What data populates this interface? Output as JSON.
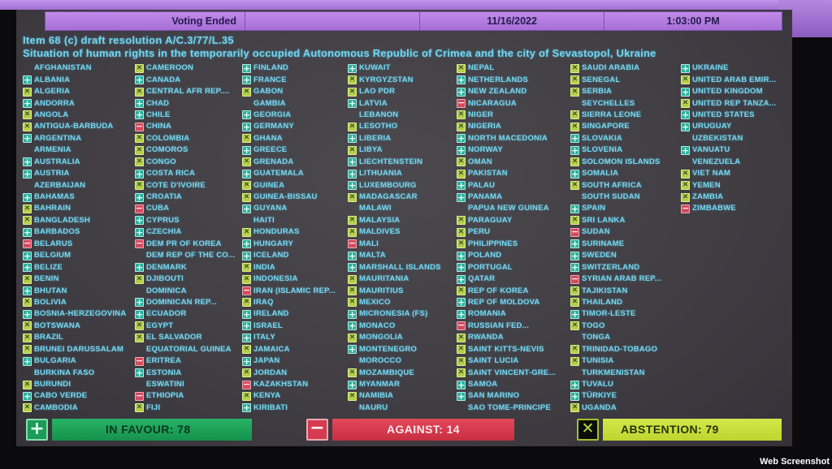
{
  "header": {
    "voting_status": "Voting Ended",
    "date": "11/16/2022",
    "time": "1:03:00 PM"
  },
  "title": {
    "line1": "Item 68 (c) draft resolution A/C.3/77/L.35",
    "line2": "Situation of human rights in the temporarily occupied Autonomous Republic of Crimea and the city of Sevastopol, Ukraine"
  },
  "vote_legend": {
    "Y": {
      "meaning": "in favour",
      "icon": "plus-icon"
    },
    "N": {
      "meaning": "against",
      "icon": "minus-icon"
    },
    "A": {
      "meaning": "abstention",
      "icon": "x-icon"
    },
    "": {
      "meaning": "not voting",
      "icon": "none"
    }
  },
  "votes": {
    "columns": [
      [
        {
          "name": "AFGHANISTAN",
          "vote": ""
        },
        {
          "name": "ALBANIA",
          "vote": "Y"
        },
        {
          "name": "ALGERIA",
          "vote": "A"
        },
        {
          "name": "ANDORRA",
          "vote": "Y"
        },
        {
          "name": "ANGOLA",
          "vote": "A"
        },
        {
          "name": "ANTIGUA-BARBUDA",
          "vote": "A"
        },
        {
          "name": "ARGENTINA",
          "vote": "Y"
        },
        {
          "name": "ARMENIA",
          "vote": ""
        },
        {
          "name": "AUSTRALIA",
          "vote": "Y"
        },
        {
          "name": "AUSTRIA",
          "vote": "Y"
        },
        {
          "name": "AZERBAIJAN",
          "vote": ""
        },
        {
          "name": "BAHAMAS",
          "vote": "Y"
        },
        {
          "name": "BAHRAIN",
          "vote": "A"
        },
        {
          "name": "BANGLADESH",
          "vote": "A"
        },
        {
          "name": "BARBADOS",
          "vote": "Y"
        },
        {
          "name": "BELARUS",
          "vote": "N"
        },
        {
          "name": "BELGIUM",
          "vote": "Y"
        },
        {
          "name": "BELIZE",
          "vote": "Y"
        },
        {
          "name": "BENIN",
          "vote": "A"
        },
        {
          "name": "BHUTAN",
          "vote": "Y"
        },
        {
          "name": "BOLIVIA",
          "vote": "A"
        },
        {
          "name": "BOSNIA-HERZEGOVINA",
          "vote": "Y"
        },
        {
          "name": "BOTSWANA",
          "vote": "A"
        },
        {
          "name": "BRAZIL",
          "vote": "A"
        },
        {
          "name": "BRUNEI DARUSSALAM",
          "vote": "A"
        },
        {
          "name": "BULGARIA",
          "vote": "Y"
        },
        {
          "name": "BURKINA FASO",
          "vote": ""
        },
        {
          "name": "BURUNDI",
          "vote": "A"
        },
        {
          "name": "CABO VERDE",
          "vote": "Y"
        },
        {
          "name": "CAMBODIA",
          "vote": "A"
        }
      ],
      [
        {
          "name": "CAMEROON",
          "vote": "A"
        },
        {
          "name": "CANADA",
          "vote": "Y"
        },
        {
          "name": "CENTRAL AFR REP....",
          "vote": "A"
        },
        {
          "name": "CHAD",
          "vote": "Y"
        },
        {
          "name": "CHILE",
          "vote": "Y"
        },
        {
          "name": "CHINA",
          "vote": "N"
        },
        {
          "name": "COLOMBIA",
          "vote": "A"
        },
        {
          "name": "COMOROS",
          "vote": "A"
        },
        {
          "name": "CONGO",
          "vote": "A"
        },
        {
          "name": "COSTA RICA",
          "vote": "Y"
        },
        {
          "name": "COTE D'IVOIRE",
          "vote": "A"
        },
        {
          "name": "CROATIA",
          "vote": "Y"
        },
        {
          "name": "CUBA",
          "vote": "N"
        },
        {
          "name": "CYPRUS",
          "vote": "Y"
        },
        {
          "name": "CZECHIA",
          "vote": "Y"
        },
        {
          "name": "DEM PR OF KOREA",
          "vote": "N"
        },
        {
          "name": "DEM REP OF THE CO...",
          "vote": ""
        },
        {
          "name": "DENMARK",
          "vote": "Y"
        },
        {
          "name": "DJIBOUTI",
          "vote": "A"
        },
        {
          "name": "DOMINICA",
          "vote": ""
        },
        {
          "name": "DOMINICAN REP...",
          "vote": "Y"
        },
        {
          "name": "ECUADOR",
          "vote": "Y"
        },
        {
          "name": "EGYPT",
          "vote": "A"
        },
        {
          "name": "EL SALVADOR",
          "vote": "A"
        },
        {
          "name": "EQUATORIAL GUINEA",
          "vote": ""
        },
        {
          "name": "ERITREA",
          "vote": "N"
        },
        {
          "name": "ESTONIA",
          "vote": "Y"
        },
        {
          "name": "ESWATINI",
          "vote": ""
        },
        {
          "name": "ETHIOPIA",
          "vote": "N"
        },
        {
          "name": "FIJI",
          "vote": "A"
        }
      ],
      [
        {
          "name": "FINLAND",
          "vote": "Y"
        },
        {
          "name": "FRANCE",
          "vote": "Y"
        },
        {
          "name": "GABON",
          "vote": "A"
        },
        {
          "name": "GAMBIA",
          "vote": ""
        },
        {
          "name": "GEORGIA",
          "vote": "Y"
        },
        {
          "name": "GERMANY",
          "vote": "Y"
        },
        {
          "name": "GHANA",
          "vote": "A"
        },
        {
          "name": "GREECE",
          "vote": "Y"
        },
        {
          "name": "GRENADA",
          "vote": "A"
        },
        {
          "name": "GUATEMALA",
          "vote": "Y"
        },
        {
          "name": "GUINEA",
          "vote": "A"
        },
        {
          "name": "GUINEA-BISSAU",
          "vote": "A"
        },
        {
          "name": "GUYANA",
          "vote": "Y"
        },
        {
          "name": "HAITI",
          "vote": ""
        },
        {
          "name": "HONDURAS",
          "vote": "A"
        },
        {
          "name": "HUNGARY",
          "vote": "Y"
        },
        {
          "name": "ICELAND",
          "vote": "Y"
        },
        {
          "name": "INDIA",
          "vote": "A"
        },
        {
          "name": "INDONESIA",
          "vote": "A"
        },
        {
          "name": "IRAN (ISLAMIC REP...",
          "vote": "N"
        },
        {
          "name": "IRAQ",
          "vote": "A"
        },
        {
          "name": "IRELAND",
          "vote": "Y"
        },
        {
          "name": "ISRAEL",
          "vote": "Y"
        },
        {
          "name": "ITALY",
          "vote": "Y"
        },
        {
          "name": "JAMAICA",
          "vote": "A"
        },
        {
          "name": "JAPAN",
          "vote": "Y"
        },
        {
          "name": "JORDAN",
          "vote": "A"
        },
        {
          "name": "KAZAKHSTAN",
          "vote": "N"
        },
        {
          "name": "KENYA",
          "vote": "A"
        },
        {
          "name": "KIRIBATI",
          "vote": "Y"
        }
      ],
      [
        {
          "name": "KUWAIT",
          "vote": "Y"
        },
        {
          "name": "KYRGYZSTAN",
          "vote": "A"
        },
        {
          "name": "LAO PDR",
          "vote": "A"
        },
        {
          "name": "LATVIA",
          "vote": "Y"
        },
        {
          "name": "LEBANON",
          "vote": ""
        },
        {
          "name": "LESOTHO",
          "vote": "A"
        },
        {
          "name": "LIBERIA",
          "vote": "Y"
        },
        {
          "name": "LIBYA",
          "vote": "A"
        },
        {
          "name": "LIECHTENSTEIN",
          "vote": "Y"
        },
        {
          "name": "LITHUANIA",
          "vote": "Y"
        },
        {
          "name": "LUXEMBOURG",
          "vote": "Y"
        },
        {
          "name": "MADAGASCAR",
          "vote": "A"
        },
        {
          "name": "MALAWI",
          "vote": ""
        },
        {
          "name": "MALAYSIA",
          "vote": "A"
        },
        {
          "name": "MALDIVES",
          "vote": "A"
        },
        {
          "name": "MALI",
          "vote": "N"
        },
        {
          "name": "MALTA",
          "vote": "Y"
        },
        {
          "name": "MARSHALL ISLANDS",
          "vote": "Y"
        },
        {
          "name": "MAURITANIA",
          "vote": "A"
        },
        {
          "name": "MAURITIUS",
          "vote": "A"
        },
        {
          "name": "MEXICO",
          "vote": "A"
        },
        {
          "name": "MICRONESIA (FS)",
          "vote": "Y"
        },
        {
          "name": "MONACO",
          "vote": "Y"
        },
        {
          "name": "MONGOLIA",
          "vote": "A"
        },
        {
          "name": "MONTENEGRO",
          "vote": "Y"
        },
        {
          "name": "MOROCCO",
          "vote": ""
        },
        {
          "name": "MOZAMBIQUE",
          "vote": "A"
        },
        {
          "name": "MYANMAR",
          "vote": "Y"
        },
        {
          "name": "NAMIBIA",
          "vote": "A"
        },
        {
          "name": "NAURU",
          "vote": ""
        }
      ],
      [
        {
          "name": "NEPAL",
          "vote": "A"
        },
        {
          "name": "NETHERLANDS",
          "vote": "Y"
        },
        {
          "name": "NEW ZEALAND",
          "vote": "Y"
        },
        {
          "name": "NICARAGUA",
          "vote": "N"
        },
        {
          "name": "NIGER",
          "vote": "A"
        },
        {
          "name": "NIGERIA",
          "vote": "A"
        },
        {
          "name": "NORTH MACEDONIA",
          "vote": "Y"
        },
        {
          "name": "NORWAY",
          "vote": "Y"
        },
        {
          "name": "OMAN",
          "vote": "A"
        },
        {
          "name": "PAKISTAN",
          "vote": "A"
        },
        {
          "name": "PALAU",
          "vote": "Y"
        },
        {
          "name": "PANAMA",
          "vote": "Y"
        },
        {
          "name": "PAPUA NEW GUINEA",
          "vote": ""
        },
        {
          "name": "PARAGUAY",
          "vote": "A"
        },
        {
          "name": "PERU",
          "vote": "A"
        },
        {
          "name": "PHILIPPINES",
          "vote": "A"
        },
        {
          "name": "POLAND",
          "vote": "Y"
        },
        {
          "name": "PORTUGAL",
          "vote": "Y"
        },
        {
          "name": "QATAR",
          "vote": "Y"
        },
        {
          "name": "REP OF KOREA",
          "vote": "A"
        },
        {
          "name": "REP OF MOLDOVA",
          "vote": "Y"
        },
        {
          "name": "ROMANIA",
          "vote": "Y"
        },
        {
          "name": "RUSSIAN FED...",
          "vote": "N"
        },
        {
          "name": "RWANDA",
          "vote": "A"
        },
        {
          "name": "SAINT KITTS-NEVIS",
          "vote": "A"
        },
        {
          "name": "SAINT LUCIA",
          "vote": "A"
        },
        {
          "name": "SAINT VINCENT-GRE...",
          "vote": "A"
        },
        {
          "name": "SAMOA",
          "vote": "Y"
        },
        {
          "name": "SAN MARINO",
          "vote": "Y"
        },
        {
          "name": "SAO TOME-PRINCIPE",
          "vote": ""
        }
      ],
      [
        {
          "name": "SAUDI ARABIA",
          "vote": "A"
        },
        {
          "name": "SENEGAL",
          "vote": "A"
        },
        {
          "name": "SERBIA",
          "vote": "A"
        },
        {
          "name": "SEYCHELLES",
          "vote": ""
        },
        {
          "name": "SIERRA LEONE",
          "vote": "A"
        },
        {
          "name": "SINGAPORE",
          "vote": "A"
        },
        {
          "name": "SLOVAKIA",
          "vote": "Y"
        },
        {
          "name": "SLOVENIA",
          "vote": "Y"
        },
        {
          "name": "SOLOMON ISLANDS",
          "vote": "A"
        },
        {
          "name": "SOMALIA",
          "vote": "Y"
        },
        {
          "name": "SOUTH AFRICA",
          "vote": "A"
        },
        {
          "name": "SOUTH SUDAN",
          "vote": ""
        },
        {
          "name": "SPAIN",
          "vote": "Y"
        },
        {
          "name": "SRI LANKA",
          "vote": "A"
        },
        {
          "name": "SUDAN",
          "vote": "N"
        },
        {
          "name": "SURINAME",
          "vote": "Y"
        },
        {
          "name": "SWEDEN",
          "vote": "Y"
        },
        {
          "name": "SWITZERLAND",
          "vote": "Y"
        },
        {
          "name": "SYRIAN ARAB REP...",
          "vote": "N"
        },
        {
          "name": "TAJIKISTAN",
          "vote": "A"
        },
        {
          "name": "THAILAND",
          "vote": "A"
        },
        {
          "name": "TIMOR-LESTE",
          "vote": "Y"
        },
        {
          "name": "TOGO",
          "vote": "A"
        },
        {
          "name": "TONGA",
          "vote": ""
        },
        {
          "name": "TRINIDAD-TOBAGO",
          "vote": "A"
        },
        {
          "name": "TUNISIA",
          "vote": "A"
        },
        {
          "name": "TURKMENISTAN",
          "vote": ""
        },
        {
          "name": "TUVALU",
          "vote": "Y"
        },
        {
          "name": "TÜRKIYE",
          "vote": "Y"
        },
        {
          "name": "UGANDA",
          "vote": "A"
        }
      ],
      [
        {
          "name": "UKRAINE",
          "vote": "Y"
        },
        {
          "name": "UNITED ARAB EMIR...",
          "vote": "A"
        },
        {
          "name": "UNITED KINGDOM",
          "vote": "Y"
        },
        {
          "name": "UNITED REP TANZA...",
          "vote": "A"
        },
        {
          "name": "UNITED STATES",
          "vote": "Y"
        },
        {
          "name": "URUGUAY",
          "vote": "Y"
        },
        {
          "name": "UZBEKISTAN",
          "vote": ""
        },
        {
          "name": "VANUATU",
          "vote": "Y"
        },
        {
          "name": "VENEZUELA",
          "vote": ""
        },
        {
          "name": "VIET NAM",
          "vote": "A"
        },
        {
          "name": "YEMEN",
          "vote": "A"
        },
        {
          "name": "ZAMBIA",
          "vote": "A"
        },
        {
          "name": "ZIMBABWE",
          "vote": "N"
        }
      ]
    ]
  },
  "summary": {
    "in_favour_label": "IN FAVOUR: 78",
    "in_favour_count": 78,
    "against_label": "AGAINST: 14",
    "against_count": 14,
    "abstention_label": "ABSTENTION: 79",
    "abstention_count": 79
  },
  "watermark": "Web Screenshot",
  "colors": {
    "header_purple": "#b27be0",
    "country_text_cyan": "#74d9f2",
    "in_favour_green": "#1fae5e",
    "against_red": "#dd3b4d",
    "abstention_yellow_green": "#c6df39",
    "in_favour_icon": "#2bb09e",
    "abstention_icon": "#b6ce4b",
    "against_icon": "#d44a5e"
  }
}
